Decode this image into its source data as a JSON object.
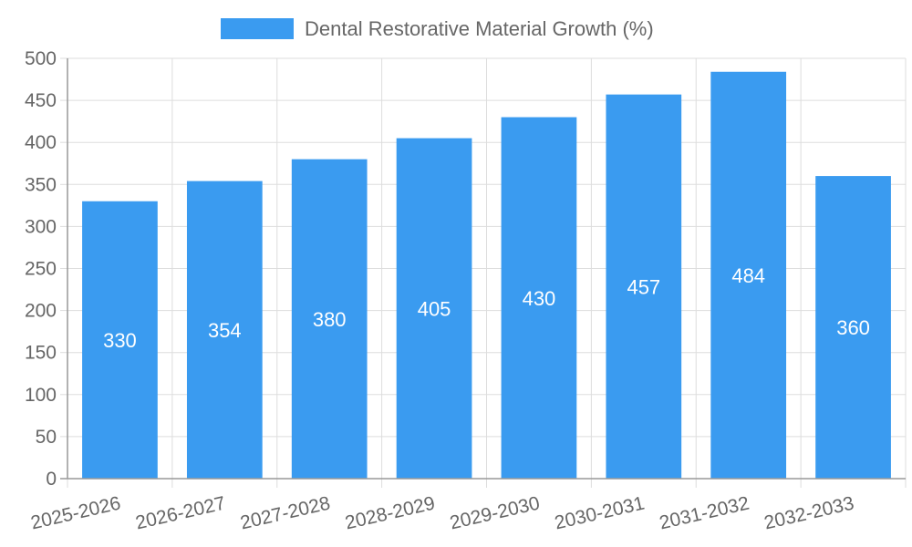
{
  "chart_data": {
    "type": "bar",
    "title": "",
    "xlabel": "",
    "ylabel": "",
    "categories": [
      "2025-2026",
      "2026-2027",
      "2027-2028",
      "2028-2029",
      "2029-2030",
      "2030-2031",
      "2031-2032",
      "2032-2033"
    ],
    "series": [
      {
        "name": "Dental Restorative Material Growth (%)",
        "values": [
          330,
          354,
          380,
          405,
          430,
          457,
          484,
          360
        ],
        "color": "#3a9bf0"
      }
    ],
    "ylim": [
      0,
      500
    ],
    "yticks": [
      0,
      50,
      100,
      150,
      200,
      250,
      300,
      350,
      400,
      450,
      500
    ],
    "grid": true,
    "legend_position": "top",
    "data_labels": true,
    "x_tick_rotation": "slanted"
  }
}
